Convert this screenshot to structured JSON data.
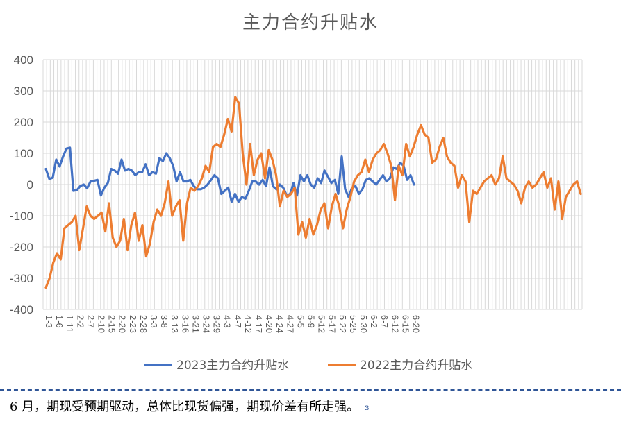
{
  "chart_data": {
    "type": "line",
    "title": "主力合约升贴水",
    "xlabel": "",
    "ylabel": "",
    "ylim": [
      -400,
      400
    ],
    "yticks": [
      400,
      300,
      200,
      100,
      0,
      -100,
      -200,
      -300,
      -400
    ],
    "grid": true,
    "legend_position": "bottom",
    "x_tick_labels": [
      "1-3",
      "1-6",
      "1-11",
      "2-2",
      "2-7",
      "2-10",
      "2-15",
      "2-20",
      "2-23",
      "2-28",
      "3-3",
      "3-8",
      "3-13",
      "3-16",
      "3-21",
      "3-24",
      "3-29",
      "4-3",
      "4-7",
      "4-12",
      "4-17",
      "4-20",
      "4-24",
      "4-27",
      "5-5",
      "5-9",
      "5-12",
      "5-17",
      "5-22",
      "5-25",
      "5-30",
      "6-2",
      "6-7",
      "6-12",
      "6-15",
      "6-20"
    ],
    "series": [
      {
        "name": "2023主力合约升贴水",
        "color": "#4472c4",
        "values": [
          50,
          18,
          22,
          80,
          58,
          90,
          115,
          118,
          -20,
          -18,
          -5,
          0,
          -12,
          10,
          12,
          15,
          -35,
          -10,
          5,
          50,
          45,
          35,
          80,
          45,
          50,
          45,
          30,
          40,
          40,
          65,
          30,
          40,
          35,
          85,
          75,
          100,
          85,
          60,
          10,
          40,
          10,
          10,
          15,
          -5,
          -15,
          -15,
          -10,
          0,
          15,
          30,
          20,
          -30,
          -20,
          -10,
          -55,
          -30,
          -55,
          -40,
          -45,
          -20,
          10,
          10,
          0,
          15,
          -5,
          55,
          -5,
          -15,
          0,
          -10,
          -35,
          -30,
          5,
          -35,
          30,
          10,
          30,
          0,
          -10,
          20,
          5,
          45,
          25,
          5,
          15,
          -30,
          90,
          -15,
          -40,
          -10,
          -5,
          -30,
          -15,
          15,
          20,
          10,
          0,
          15,
          30,
          10,
          20,
          55,
          50,
          70,
          60,
          15,
          30,
          0
        ]
      },
      {
        "name": "2022主力合约升贴水",
        "color": "#ed7d31",
        "values": [
          -330,
          -300,
          -250,
          -220,
          -240,
          -140,
          -130,
          -120,
          -100,
          -210,
          -140,
          -70,
          -100,
          -110,
          -100,
          -90,
          -150,
          -60,
          -170,
          -200,
          -180,
          -110,
          -210,
          -130,
          -90,
          -180,
          -130,
          -230,
          -190,
          -120,
          -80,
          -100,
          -60,
          10,
          -100,
          -70,
          -50,
          -180,
          -60,
          -10,
          -20,
          -5,
          20,
          60,
          40,
          120,
          130,
          120,
          160,
          210,
          170,
          280,
          260,
          100,
          0,
          130,
          30,
          80,
          100,
          20,
          110,
          80,
          30,
          -70,
          -20,
          -40,
          -30,
          -10,
          -160,
          -120,
          -170,
          -110,
          -160,
          -130,
          -80,
          -60,
          -140,
          -70,
          -30,
          -70,
          -140,
          -80,
          -40,
          10,
          30,
          40,
          80,
          40,
          80,
          100,
          110,
          130,
          100,
          60,
          -50,
          60,
          30,
          130,
          90,
          120,
          160,
          190,
          160,
          150,
          70,
          80,
          120,
          150,
          90,
          70,
          60,
          -10,
          30,
          10,
          -120,
          -20,
          -30,
          -10,
          10,
          20,
          30,
          0,
          20,
          90,
          20,
          10,
          0,
          -20,
          -60,
          -10,
          10,
          -10,
          0,
          20,
          40,
          -10,
          20,
          -80,
          10,
          -110,
          -40,
          -20,
          0,
          10,
          -30
        ]
      }
    ]
  },
  "caption": {
    "text": "6 月，期现受预期驱动，总体比现货偏强，期现价差有所走强。",
    "mark": "ɜ"
  }
}
